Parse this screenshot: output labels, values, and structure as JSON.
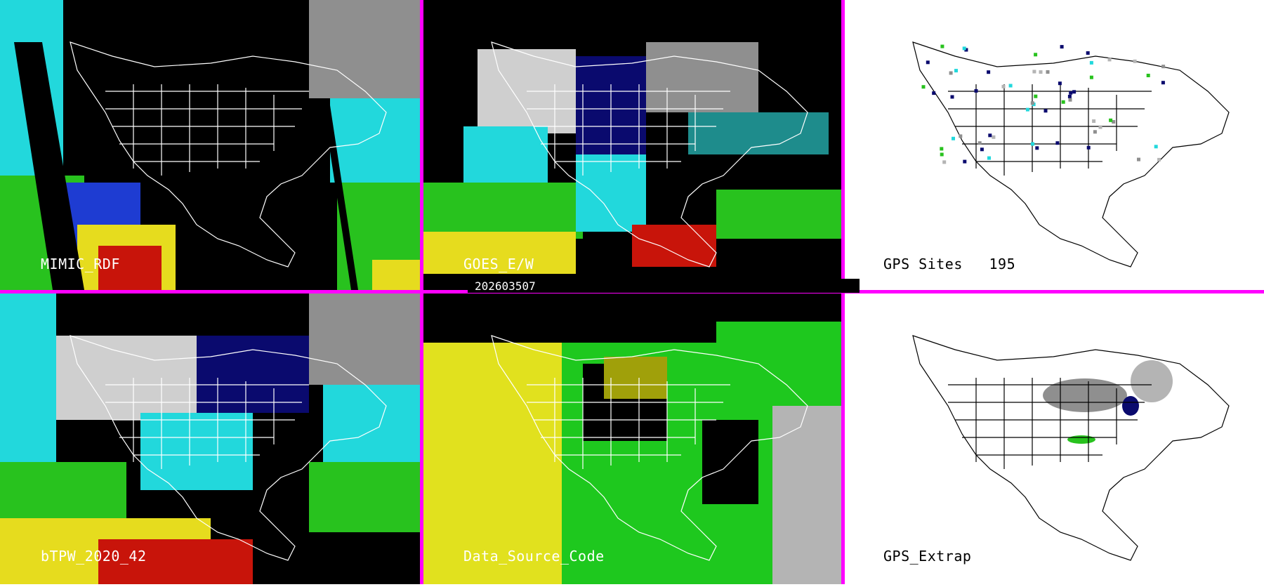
{
  "panels": [
    {
      "id": "mimic",
      "label": "MIMIC_RDF",
      "label_color": "#ffffff"
    },
    {
      "id": "goes",
      "label": "GOES_E/W",
      "label_color": "#ffffff"
    },
    {
      "id": "gps-sites",
      "label": "GPS Sites   195",
      "label_color": "#000000"
    },
    {
      "id": "btpw",
      "label": "bTPW_2020_42",
      "label_color": "#ffffff"
    },
    {
      "id": "data-source",
      "label": "Data_Source_Code",
      "label_color": "#ffffff"
    },
    {
      "id": "gps-extrap",
      "label": "GPS_Extrap",
      "label_color": "#000000"
    }
  ],
  "timestamp": "202603507",
  "colors": {
    "divider": "#ff00ff",
    "land_outline": "#ffffff",
    "land_outline_dark": "#000000",
    "palette": {
      "gray_light": "#cfcfcf",
      "gray_mid": "#8f8f8f",
      "navy": "#0a0a6e",
      "blue": "#1e3cd2",
      "cyan": "#22d8dc",
      "green": "#28c21e",
      "yellow": "#e6dc1e",
      "orange": "#e69a14",
      "red": "#c8140a",
      "olive": "#a0a00a",
      "dsc_gray": "#b4b4b4",
      "dsc_yellow": "#e1e11e",
      "dsc_green": "#1ec81e"
    }
  }
}
